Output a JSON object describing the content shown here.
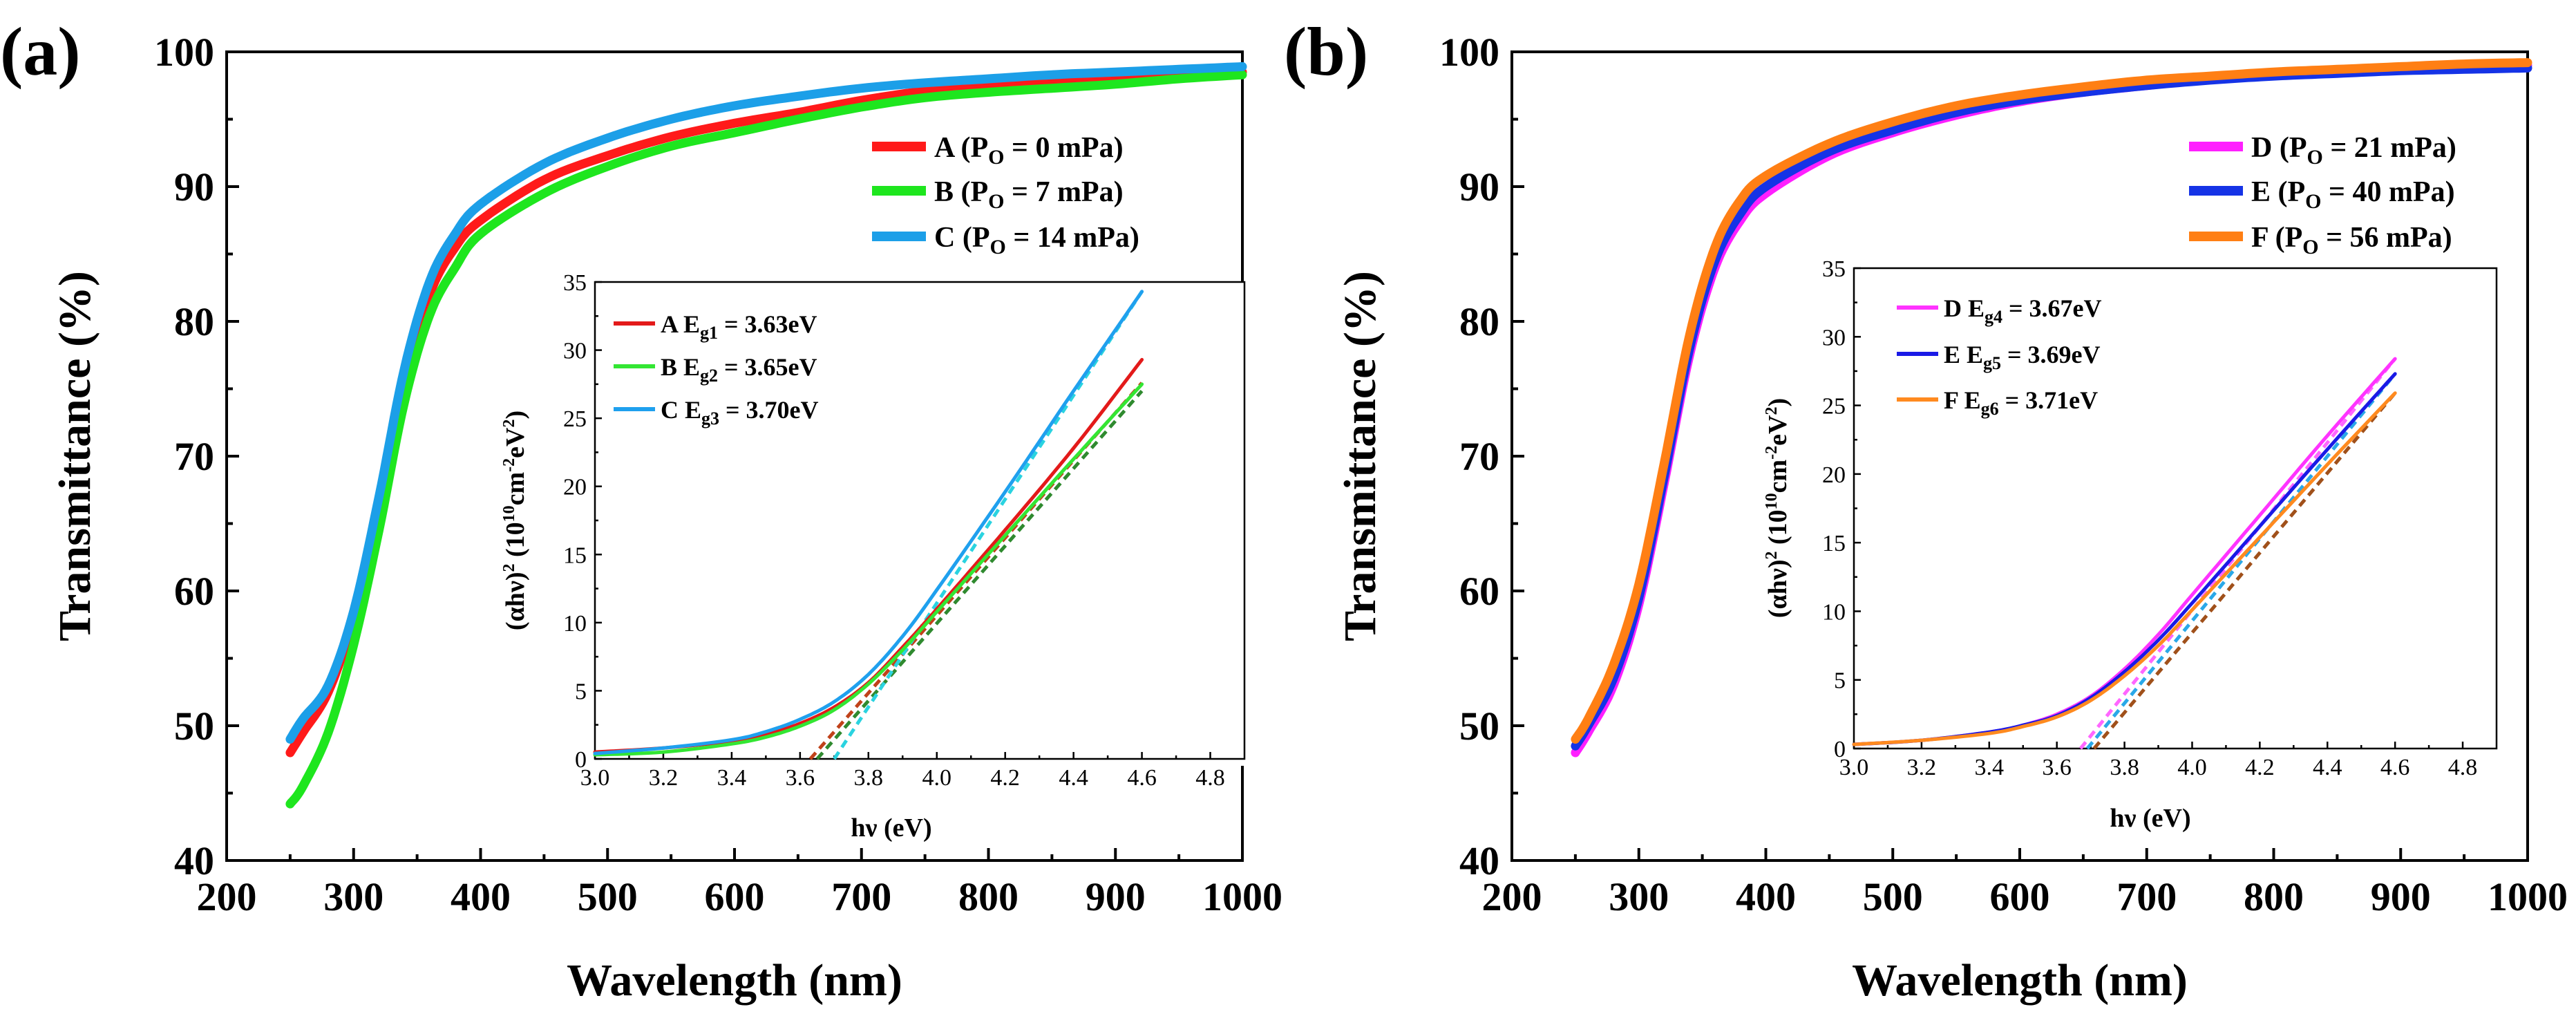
{
  "panels": [
    {
      "label": "(a)",
      "main": {
        "xlabel": "Wavelength (nm)",
        "ylabel": "Transmittance (%)",
        "xlim": [
          200,
          1000
        ],
        "ylim": [
          40,
          100
        ],
        "xticks": [
          200,
          300,
          400,
          500,
          600,
          700,
          800,
          900,
          1000
        ],
        "yticks": [
          40,
          50,
          60,
          70,
          80,
          90,
          100
        ],
        "legend": [
          {
            "letter": "A",
            "sub": "O",
            "cond": " = 0 mPa)"
          },
          {
            "letter": "B",
            "sub": "O",
            "cond": " = 7 mPa)"
          },
          {
            "letter": "C",
            "sub": "O",
            "cond": " = 14 mPa)"
          }
        ]
      },
      "inset": {
        "xlabel": "hν (eV)",
        "ylabel_main": "(αhν)",
        "ylabel_sup1": "2",
        "ylabel_unit_a": " (10",
        "ylabel_sup2": "10",
        "ylabel_unit_b": "cm",
        "ylabel_sup3": "-2",
        "ylabel_unit_c": "eV",
        "ylabel_sup4": "2",
        "ylabel_unit_d": ")",
        "xlim": [
          3.0,
          4.9
        ],
        "ylim": [
          0,
          35
        ],
        "xticks": [
          "3.0",
          "3.2",
          "3.4",
          "3.6",
          "3.8",
          "4.0",
          "4.2",
          "4.4",
          "4.6",
          "4.8"
        ],
        "yticks": [
          "0",
          "5",
          "10",
          "15",
          "20",
          "25",
          "30",
          "35"
        ],
        "legend": [
          {
            "name": "A E",
            "sub": "g1",
            "val": " = 3.63eV"
          },
          {
            "name": "B E",
            "sub": "g2",
            "val": " = 3.65eV"
          },
          {
            "name": "C E",
            "sub": "g3",
            "val": " = 3.70eV"
          }
        ]
      }
    },
    {
      "label": "(b)",
      "main": {
        "xlabel": "Wavelength (nm)",
        "ylabel": "Transmittance (%)",
        "xlim": [
          200,
          1000
        ],
        "ylim": [
          40,
          100
        ],
        "xticks": [
          200,
          300,
          400,
          500,
          600,
          700,
          800,
          900,
          1000
        ],
        "yticks": [
          40,
          50,
          60,
          70,
          80,
          90,
          100
        ],
        "legend": [
          {
            "letter": "D",
            "sub": "O",
            "cond": " = 21 mPa)"
          },
          {
            "letter": "E",
            "sub": "O",
            "cond": " = 40 mPa)"
          },
          {
            "letter": "F",
            "sub": "O",
            "cond": " = 56 mPa)"
          }
        ]
      },
      "inset": {
        "xlabel": "hν (eV)",
        "ylabel_main": "(αhν)",
        "ylabel_sup1": "2",
        "ylabel_unit_a": " (10",
        "ylabel_sup2": "10",
        "ylabel_unit_b": "cm",
        "ylabel_sup3": "-2",
        "ylabel_unit_c": "eV",
        "ylabel_sup4": "2",
        "ylabel_unit_d": ")",
        "xlim": [
          3.0,
          4.9
        ],
        "ylim": [
          0,
          35
        ],
        "xticks": [
          "3.0",
          "3.2",
          "3.4",
          "3.6",
          "3.8",
          "4.0",
          "4.2",
          "4.4",
          "4.6",
          "4.8"
        ],
        "yticks": [
          "0",
          "5",
          "10",
          "15",
          "20",
          "25",
          "30",
          "35"
        ],
        "legend": [
          {
            "name": "D E",
            "sub": "g4",
            "val": " = 3.67eV"
          },
          {
            "name": "E E",
            "sub": "g5",
            "val": " = 3.69eV"
          },
          {
            "name": "F E",
            "sub": "g6",
            "val": " = 3.71eV"
          }
        ]
      }
    }
  ],
  "chart_data": [
    {
      "type": "line",
      "xlabel": "Wavelength (nm)",
      "ylabel": "Transmittance (%)",
      "xlim": [
        200,
        1000
      ],
      "ylim": [
        40,
        100
      ],
      "grid": false,
      "legend_position": "top-right",
      "series": [
        {
          "name": "A (PO = 0 mPa)",
          "color": "#ff1a1a",
          "x": [
            250,
            260,
            280,
            300,
            320,
            340,
            360,
            380,
            400,
            450,
            500,
            550,
            600,
            650,
            700,
            750,
            800,
            850,
            900,
            950,
            1000
          ],
          "y": [
            48,
            49.5,
            52.5,
            58,
            66,
            75,
            82,
            85.5,
            87.5,
            90.5,
            92.3,
            93.7,
            94.7,
            95.5,
            96.4,
            97.1,
            97.6,
            97.9,
            98.1,
            98.3,
            98.5
          ]
        },
        {
          "name": "B (PO = 7 mPa)",
          "color": "#1ee61e",
          "x": [
            250,
            260,
            280,
            300,
            320,
            340,
            360,
            380,
            400,
            450,
            500,
            550,
            600,
            650,
            700,
            750,
            800,
            850,
            900,
            950,
            1000
          ],
          "y": [
            44.2,
            45.5,
            49.5,
            56,
            64.5,
            74,
            80.5,
            84,
            86.5,
            89.5,
            91.5,
            93,
            94,
            95,
            95.9,
            96.6,
            97,
            97.3,
            97.6,
            98,
            98.3
          ]
        },
        {
          "name": "C (PO = 14 mPa)",
          "color": "#1c9fe8",
          "x": [
            250,
            260,
            280,
            300,
            320,
            340,
            360,
            380,
            400,
            450,
            500,
            550,
            600,
            650,
            700,
            750,
            800,
            850,
            900,
            950,
            1000
          ],
          "y": [
            49,
            50.5,
            53,
            58.5,
            67,
            76.5,
            83,
            86.5,
            88.7,
            91.7,
            93.6,
            95,
            96,
            96.7,
            97.3,
            97.7,
            98,
            98.3,
            98.5,
            98.7,
            98.9
          ]
        }
      ]
    },
    {
      "type": "line",
      "xlabel": "hν (eV)",
      "xlim": [
        3.0,
        4.9
      ],
      "ylim": [
        0,
        35
      ],
      "grid": false,
      "legend_position": "top-left",
      "series": [
        {
          "name": "A Eg1 = 3.63eV",
          "color": "#e31a1a",
          "x": [
            3.0,
            3.2,
            3.4,
            3.5,
            3.6,
            3.7,
            3.8,
            3.9,
            4.0,
            4.2,
            4.4,
            4.6
          ],
          "y": [
            0.5,
            0.8,
            1.3,
            1.8,
            2.6,
            3.8,
            5.6,
            8.2,
            11.0,
            16.8,
            22.8,
            29.3
          ]
        },
        {
          "name": "B Eg2 = 3.65eV",
          "color": "#33e633",
          "x": [
            3.0,
            3.2,
            3.4,
            3.5,
            3.6,
            3.7,
            3.8,
            3.9,
            4.0,
            4.2,
            4.4,
            4.6
          ],
          "y": [
            0.3,
            0.5,
            1.1,
            1.6,
            2.4,
            3.6,
            5.5,
            8.0,
            10.8,
            16.4,
            22.0,
            27.5
          ]
        },
        {
          "name": "C Eg3 = 3.70eV",
          "color": "#1fa0ee",
          "x": [
            3.0,
            3.2,
            3.4,
            3.5,
            3.6,
            3.7,
            3.8,
            3.9,
            4.0,
            4.2,
            4.4,
            4.6
          ],
          "y": [
            0.4,
            0.8,
            1.4,
            2.0,
            2.9,
            4.2,
            6.2,
            9.0,
            12.4,
            19.6,
            27.0,
            34.3
          ]
        }
      ],
      "fits": [
        {
          "series": "A",
          "color": "#c0421a",
          "x": [
            3.63,
            4.6
          ],
          "y": [
            0,
            27.6
          ]
        },
        {
          "series": "B",
          "color": "#2f8a2f",
          "x": [
            3.65,
            4.6
          ],
          "y": [
            0,
            27.0
          ]
        },
        {
          "series": "C",
          "color": "#2ad3e0",
          "x": [
            3.7,
            4.6
          ],
          "y": [
            0,
            34.3
          ]
        }
      ]
    },
    {
      "type": "line",
      "xlabel": "Wavelength (nm)",
      "ylabel": "Transmittance (%)",
      "xlim": [
        200,
        1000
      ],
      "ylim": [
        40,
        100
      ],
      "grid": false,
      "legend_position": "top-right",
      "series": [
        {
          "name": "D (PO = 21 mPa)",
          "color": "#ff1fff",
          "x": [
            250,
            260,
            280,
            300,
            320,
            340,
            360,
            380,
            400,
            450,
            500,
            550,
            600,
            650,
            700,
            750,
            800,
            850,
            900,
            950,
            1000
          ],
          "y": [
            48,
            49.5,
            53,
            59,
            68,
            77.5,
            84,
            87.5,
            89.5,
            92.3,
            94,
            95.3,
            96.3,
            97,
            97.5,
            98,
            98.3,
            98.5,
            98.7,
            98.9,
            99
          ]
        },
        {
          "name": "E (PO = 40 mPa)",
          "color": "#1533e6",
          "x": [
            250,
            260,
            280,
            300,
            320,
            340,
            360,
            380,
            400,
            450,
            500,
            550,
            600,
            650,
            700,
            750,
            800,
            850,
            900,
            950,
            1000
          ],
          "y": [
            48.5,
            50,
            53.5,
            59.5,
            68.5,
            78,
            84.5,
            88,
            90,
            92.6,
            94.2,
            95.5,
            96.4,
            97,
            97.5,
            97.9,
            98.2,
            98.4,
            98.6,
            98.7,
            98.8
          ]
        },
        {
          "name": "F (PO = 56 mPa)",
          "color": "#ff7f14",
          "x": [
            250,
            260,
            280,
            300,
            320,
            340,
            360,
            380,
            400,
            450,
            500,
            550,
            600,
            650,
            700,
            750,
            800,
            850,
            900,
            950,
            1000
          ],
          "y": [
            49,
            50.5,
            54.5,
            60.5,
            69.5,
            79,
            85.5,
            89,
            90.8,
            93.2,
            94.8,
            96,
            96.8,
            97.4,
            97.9,
            98.2,
            98.5,
            98.7,
            98.9,
            99.1,
            99.2
          ]
        }
      ]
    },
    {
      "type": "line",
      "xlabel": "hν (eV)",
      "xlim": [
        3.0,
        4.9
      ],
      "ylim": [
        0,
        35
      ],
      "grid": false,
      "legend_position": "top-left",
      "series": [
        {
          "name": "D Eg4 = 3.67eV",
          "color": "#ff33ff",
          "x": [
            3.0,
            3.2,
            3.4,
            3.5,
            3.6,
            3.7,
            3.8,
            3.9,
            4.0,
            4.2,
            4.4,
            4.6
          ],
          "y": [
            0.3,
            0.6,
            1.2,
            1.7,
            2.5,
            3.8,
            5.8,
            8.3,
            11.2,
            17.0,
            22.8,
            28.4
          ]
        },
        {
          "name": "E Eg5 = 3.69eV",
          "color": "#1a1ae6",
          "x": [
            3.0,
            3.2,
            3.4,
            3.5,
            3.6,
            3.7,
            3.8,
            3.9,
            4.0,
            4.2,
            4.4,
            4.6
          ],
          "y": [
            0.3,
            0.6,
            1.2,
            1.7,
            2.4,
            3.7,
            5.6,
            7.9,
            10.6,
            16.2,
            21.8,
            27.3
          ]
        },
        {
          "name": "F Eg6 = 3.71eV",
          "color": "#ff8a1f",
          "x": [
            3.0,
            3.2,
            3.4,
            3.5,
            3.6,
            3.7,
            3.8,
            3.9,
            4.0,
            4.2,
            4.4,
            4.6
          ],
          "y": [
            0.3,
            0.6,
            1.1,
            1.6,
            2.3,
            3.5,
            5.3,
            7.5,
            10.1,
            15.4,
            20.7,
            25.9
          ]
        }
      ],
      "fits": [
        {
          "series": "D",
          "color": "#ff66ff",
          "x": [
            3.67,
            4.6
          ],
          "y": [
            0,
            28.4
          ]
        },
        {
          "series": "E",
          "color": "#2aa8e8",
          "x": [
            3.69,
            4.6
          ],
          "y": [
            0,
            27.3
          ]
        },
        {
          "series": "F",
          "color": "#a0501a",
          "x": [
            3.71,
            4.6
          ],
          "y": [
            0,
            25.9
          ]
        }
      ]
    }
  ]
}
